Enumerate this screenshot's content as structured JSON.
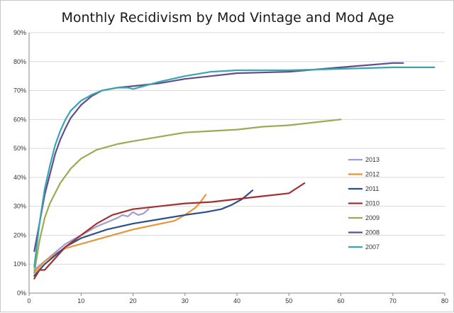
{
  "chart_data": {
    "type": "line",
    "title": "Monthly Recidivism by Mod Vintage and Mod Age",
    "xlabel": "",
    "ylabel": "",
    "xlim": [
      0,
      80
    ],
    "ylim": [
      0,
      90
    ],
    "x_ticks": [
      "0",
      "10",
      "20",
      "30",
      "40",
      "50",
      "60",
      "70",
      "80"
    ],
    "y_ticks": [
      "0%",
      "10%",
      "20%",
      "30%",
      "40%",
      "50%",
      "60%",
      "70%",
      "80%",
      "90%"
    ],
    "grid": "horizontal",
    "legend_position": "right",
    "series": [
      {
        "name": "2013",
        "color": "#a29bd4",
        "points": [
          [
            1,
            8
          ],
          [
            3,
            11
          ],
          [
            5,
            14
          ],
          [
            7,
            17
          ],
          [
            9,
            19
          ],
          [
            11,
            21
          ],
          [
            13,
            23
          ],
          [
            15,
            24.5
          ],
          [
            17,
            26
          ],
          [
            18,
            27
          ],
          [
            19,
            26.5
          ],
          [
            20,
            28
          ],
          [
            21,
            27
          ],
          [
            22,
            27.5
          ],
          [
            23,
            29
          ]
        ]
      },
      {
        "name": "2012",
        "color": "#e8953a",
        "points": [
          [
            1,
            7
          ],
          [
            2,
            9
          ],
          [
            3,
            11
          ],
          [
            5,
            13.5
          ],
          [
            7,
            15.5
          ],
          [
            10,
            17
          ],
          [
            13,
            18.5
          ],
          [
            16,
            20
          ],
          [
            20,
            22
          ],
          [
            24,
            23.5
          ],
          [
            28,
            25
          ],
          [
            30,
            27
          ],
          [
            32,
            29.5
          ],
          [
            33,
            31.5
          ],
          [
            34,
            34
          ]
        ]
      },
      {
        "name": "2011",
        "color": "#2d4f8e",
        "points": [
          [
            1,
            6
          ],
          [
            3,
            10
          ],
          [
            5,
            13
          ],
          [
            7,
            16
          ],
          [
            10,
            19
          ],
          [
            15,
            22
          ],
          [
            20,
            24
          ],
          [
            25,
            25.5
          ],
          [
            30,
            27
          ],
          [
            34,
            28
          ],
          [
            37,
            29
          ],
          [
            39,
            30.5
          ],
          [
            41,
            32.5
          ],
          [
            42,
            34
          ],
          [
            43,
            35.5
          ]
        ]
      },
      {
        "name": "2010",
        "color": "#a33030",
        "points": [
          [
            1,
            5
          ],
          [
            2,
            8
          ],
          [
            3,
            8
          ],
          [
            5,
            12
          ],
          [
            7,
            16
          ],
          [
            10,
            20
          ],
          [
            13,
            24
          ],
          [
            16,
            27
          ],
          [
            20,
            29
          ],
          [
            25,
            30
          ],
          [
            30,
            31
          ],
          [
            35,
            31.5
          ],
          [
            40,
            32.5
          ],
          [
            45,
            33.5
          ],
          [
            50,
            34.5
          ],
          [
            53,
            38
          ]
        ]
      },
      {
        "name": "2009",
        "color": "#9aab54",
        "points": [
          [
            1,
            7
          ],
          [
            2,
            18
          ],
          [
            3,
            26
          ],
          [
            4,
            31
          ],
          [
            6,
            38
          ],
          [
            8,
            43
          ],
          [
            10,
            46.5
          ],
          [
            13,
            49.5
          ],
          [
            17,
            51.5
          ],
          [
            20,
            52.5
          ],
          [
            25,
            54
          ],
          [
            30,
            55.5
          ],
          [
            35,
            56
          ],
          [
            40,
            56.5
          ],
          [
            45,
            57.5
          ],
          [
            50,
            58
          ],
          [
            55,
            59
          ],
          [
            60,
            60
          ]
        ]
      },
      {
        "name": "2008",
        "color": "#5f4e8a",
        "points": [
          [
            1,
            14.5
          ],
          [
            2,
            24
          ],
          [
            3,
            34
          ],
          [
            4,
            41
          ],
          [
            5,
            48
          ],
          [
            6,
            53
          ],
          [
            7,
            57
          ],
          [
            8,
            60.5
          ],
          [
            10,
            65
          ],
          [
            12,
            68
          ],
          [
            14,
            70
          ],
          [
            17,
            71
          ],
          [
            20,
            71.5
          ],
          [
            25,
            72.5
          ],
          [
            30,
            74
          ],
          [
            35,
            75
          ],
          [
            40,
            76
          ],
          [
            50,
            76.5
          ],
          [
            60,
            78
          ],
          [
            70,
            79.5
          ],
          [
            72,
            79.5
          ]
        ]
      },
      {
        "name": "2007",
        "color": "#3aa4b0",
        "points": [
          [
            1,
            9
          ],
          [
            2,
            24
          ],
          [
            3,
            36
          ],
          [
            4,
            44
          ],
          [
            5,
            51
          ],
          [
            6,
            56
          ],
          [
            7,
            60
          ],
          [
            8,
            63
          ],
          [
            10,
            66.5
          ],
          [
            12,
            68.5
          ],
          [
            14,
            70
          ],
          [
            17,
            71
          ],
          [
            19,
            71
          ],
          [
            20,
            70.5
          ],
          [
            22,
            71.5
          ],
          [
            25,
            73
          ],
          [
            30,
            75
          ],
          [
            35,
            76.5
          ],
          [
            40,
            77
          ],
          [
            50,
            77
          ],
          [
            60,
            77.5
          ],
          [
            70,
            78
          ],
          [
            78,
            78
          ]
        ]
      }
    ]
  }
}
